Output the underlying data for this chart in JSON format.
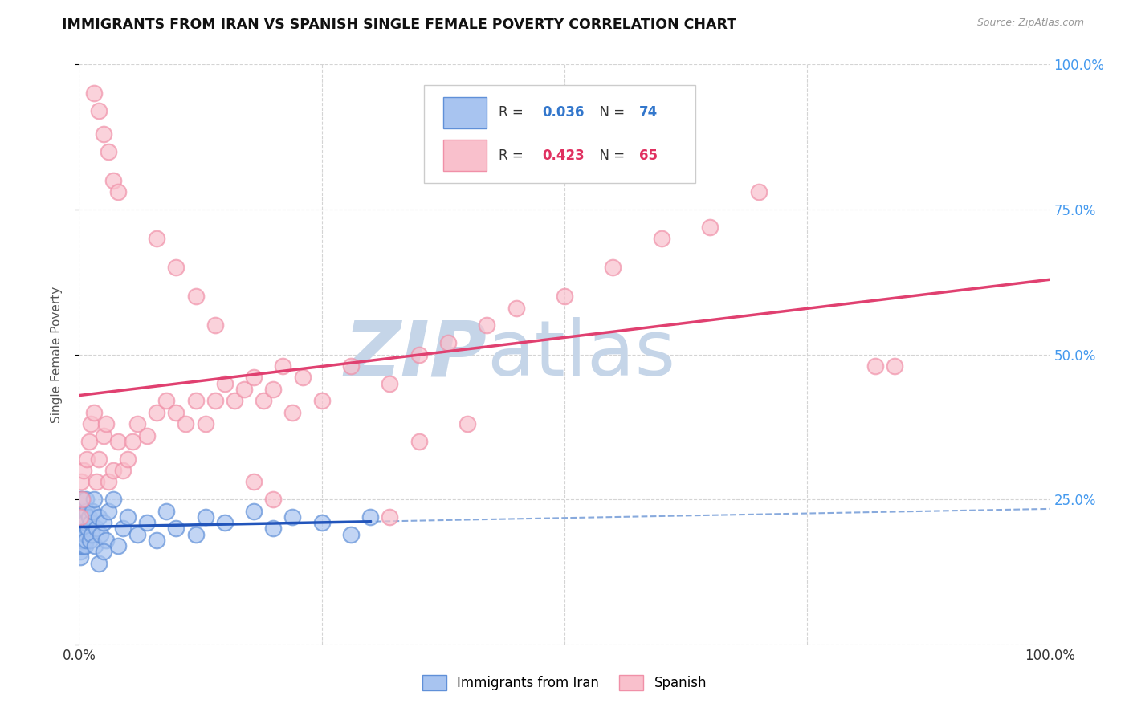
{
  "title": "IMMIGRANTS FROM IRAN VS SPANISH SINGLE FEMALE POVERTY CORRELATION CHART",
  "source": "Source: ZipAtlas.com",
  "ylabel": "Single Female Poverty",
  "legend_label1": "Immigrants from Iran",
  "legend_label2": "Spanish",
  "r1": 0.036,
  "n1": 74,
  "r2": 0.423,
  "n2": 65,
  "color1_fill": "#A8C4F0",
  "color1_edge": "#6090D8",
  "color2_fill": "#F9C0CC",
  "color2_edge": "#F090A8",
  "line_color1": "#2255BB",
  "line_color2": "#E04070",
  "dash_color1": "#88AADD",
  "xlim": [
    0.0,
    1.0
  ],
  "ylim": [
    0.0,
    1.0
  ],
  "xticks": [
    0.0,
    0.25,
    0.5,
    0.75,
    1.0
  ],
  "yticks": [
    0.0,
    0.25,
    0.5,
    0.75,
    1.0
  ],
  "ytick_labels_right": [
    "",
    "25.0%",
    "50.0%",
    "75.0%",
    "100.0%"
  ],
  "watermark_zip": "ZIP",
  "watermark_atlas": "atlas",
  "watermark_color_zip": "#C5D5E8",
  "watermark_color_atlas": "#C5D5E8",
  "background_color": "#FFFFFF",
  "iran_x": [
    0.001,
    0.002,
    0.001,
    0.001,
    0.002,
    0.001,
    0.002,
    0.003,
    0.001,
    0.001,
    0.002,
    0.001,
    0.001,
    0.002,
    0.001,
    0.001,
    0.003,
    0.002,
    0.003,
    0.002,
    0.003,
    0.004,
    0.003,
    0.002,
    0.004,
    0.003,
    0.002,
    0.005,
    0.004,
    0.003,
    0.005,
    0.004,
    0.006,
    0.005,
    0.006,
    0.007,
    0.006,
    0.007,
    0.008,
    0.007,
    0.009,
    0.01,
    0.011,
    0.012,
    0.013,
    0.014,
    0.015,
    0.016,
    0.018,
    0.02,
    0.022,
    0.025,
    0.028,
    0.03,
    0.035,
    0.04,
    0.045,
    0.05,
    0.06,
    0.07,
    0.08,
    0.09,
    0.1,
    0.12,
    0.13,
    0.15,
    0.18,
    0.2,
    0.22,
    0.25,
    0.28,
    0.3,
    0.02,
    0.025
  ],
  "iran_y": [
    0.2,
    0.18,
    0.22,
    0.25,
    0.19,
    0.21,
    0.17,
    0.23,
    0.16,
    0.24,
    0.2,
    0.22,
    0.18,
    0.21,
    0.19,
    0.15,
    0.17,
    0.2,
    0.22,
    0.18,
    0.21,
    0.19,
    0.23,
    0.25,
    0.17,
    0.2,
    0.22,
    0.19,
    0.21,
    0.18,
    0.23,
    0.25,
    0.17,
    0.2,
    0.22,
    0.19,
    0.21,
    0.18,
    0.23,
    0.25,
    0.2,
    0.22,
    0.18,
    0.21,
    0.19,
    0.23,
    0.25,
    0.17,
    0.2,
    0.22,
    0.19,
    0.21,
    0.18,
    0.23,
    0.25,
    0.17,
    0.2,
    0.22,
    0.19,
    0.21,
    0.18,
    0.23,
    0.2,
    0.19,
    0.22,
    0.21,
    0.23,
    0.2,
    0.22,
    0.21,
    0.19,
    0.22,
    0.14,
    0.16
  ],
  "spanish_x": [
    0.001,
    0.002,
    0.003,
    0.005,
    0.008,
    0.01,
    0.012,
    0.015,
    0.018,
    0.02,
    0.025,
    0.028,
    0.03,
    0.035,
    0.04,
    0.045,
    0.05,
    0.055,
    0.06,
    0.07,
    0.08,
    0.09,
    0.1,
    0.11,
    0.12,
    0.13,
    0.14,
    0.15,
    0.16,
    0.17,
    0.18,
    0.19,
    0.2,
    0.21,
    0.22,
    0.23,
    0.25,
    0.28,
    0.32,
    0.35,
    0.38,
    0.42,
    0.45,
    0.5,
    0.55,
    0.6,
    0.65,
    0.7,
    0.12,
    0.14,
    0.015,
    0.02,
    0.025,
    0.03,
    0.035,
    0.04,
    0.08,
    0.1,
    0.82,
    0.84,
    0.35,
    0.4,
    0.18,
    0.2,
    0.32
  ],
  "spanish_y": [
    0.22,
    0.28,
    0.25,
    0.3,
    0.32,
    0.35,
    0.38,
    0.4,
    0.28,
    0.32,
    0.36,
    0.38,
    0.28,
    0.3,
    0.35,
    0.3,
    0.32,
    0.35,
    0.38,
    0.36,
    0.4,
    0.42,
    0.4,
    0.38,
    0.42,
    0.38,
    0.42,
    0.45,
    0.42,
    0.44,
    0.46,
    0.42,
    0.44,
    0.48,
    0.4,
    0.46,
    0.42,
    0.48,
    0.45,
    0.5,
    0.52,
    0.55,
    0.58,
    0.6,
    0.65,
    0.7,
    0.72,
    0.78,
    0.6,
    0.55,
    0.95,
    0.92,
    0.88,
    0.85,
    0.8,
    0.78,
    0.7,
    0.65,
    0.48,
    0.48,
    0.35,
    0.38,
    0.28,
    0.25,
    0.22
  ]
}
